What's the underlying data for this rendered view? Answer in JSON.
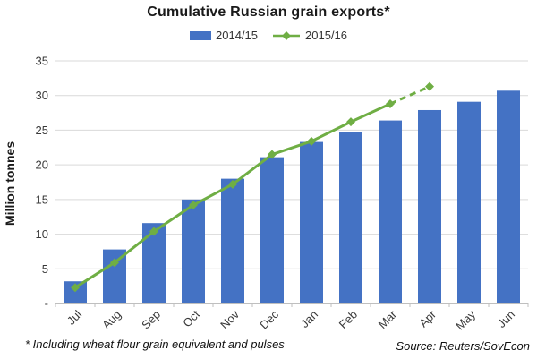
{
  "title": "Cumulative Russian grain exports*",
  "legend": {
    "items": [
      {
        "label": "2014/15",
        "type": "bar",
        "color": "#4472C4"
      },
      {
        "label": "2015/16",
        "type": "line",
        "color": "#6FAE44",
        "marker": "diamond"
      }
    ]
  },
  "footnote": "* Including wheat flour grain equivalent and pulses",
  "source": "Source: Reuters/SovEcon",
  "colors": {
    "bar": "#4472C4",
    "line": "#6FAE44",
    "gridline": "#D9D9D9",
    "axis": "#BFBFBF",
    "tick_text": "#3A3A3A"
  },
  "chart_data": {
    "type": "bar+line",
    "title": "Cumulative Russian grain exports*",
    "categories": [
      "Jul",
      "Aug",
      "Sep",
      "Oct",
      "Nov",
      "Dec",
      "Jan",
      "Feb",
      "Mar",
      "Apr",
      "May",
      "Jun"
    ],
    "series": [
      {
        "name": "2014/15",
        "type": "bar",
        "color": "#4472C4",
        "values": [
          3.2,
          7.8,
          11.6,
          15.0,
          18.0,
          21.1,
          23.3,
          24.7,
          26.4,
          27.9,
          29.1,
          30.7
        ]
      },
      {
        "name": "2015/16",
        "type": "line",
        "color": "#6FAE44",
        "marker": "diamond",
        "values": [
          2.3,
          5.9,
          10.4,
          14.2,
          17.2,
          21.5,
          23.4,
          26.2,
          28.8,
          31.3
        ],
        "dashed_from_index": 8,
        "note": "dashed final segment = forecast"
      }
    ],
    "xlabel": "",
    "ylabel": "Million tonnes",
    "ylim": [
      0,
      35
    ],
    "ytick_interval": 5,
    "ytick_zero_label": "-",
    "grid": true,
    "legend_position": "top"
  }
}
